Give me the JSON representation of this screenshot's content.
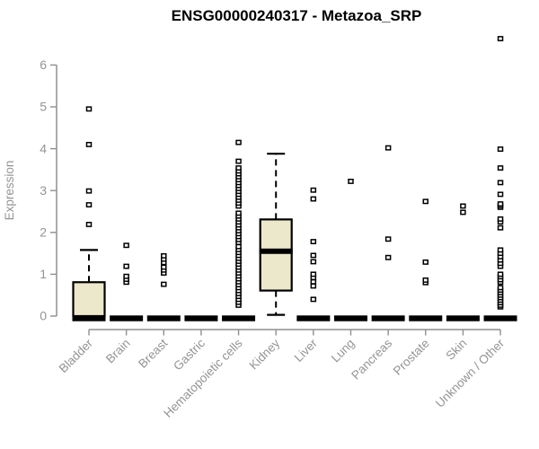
{
  "chart_data": {
    "type": "boxplot",
    "title": "ENSG00000240317 - Metazoa_SRP",
    "ylabel": "Expression",
    "xlabel": "",
    "ylim": [
      0,
      6.7
    ],
    "yticks": [
      0,
      1,
      2,
      3,
      4,
      5,
      6
    ],
    "grid": false,
    "legend": "none",
    "colors": {
      "box_fill": "#ece8cb",
      "box_stroke": "#000000",
      "median": "#000000",
      "axis": "#8f8f8f",
      "tick_text": "#949494",
      "title_text": "#000000",
      "outlier_fill": "#ffffff",
      "background": "#ffffff"
    },
    "categories": [
      "Bladder",
      "Brain",
      "Breast",
      "Gastric",
      "Hematopoietic cells",
      "Kidney",
      "Liver",
      "Lung",
      "Pancreas",
      "Prostate",
      "Skin",
      "Unknown / Other"
    ],
    "boxes": [
      {
        "category": "Bladder",
        "whisker_low": 0,
        "q1": 0,
        "median": 0,
        "q3": 0.81,
        "whisker_high": 1.58,
        "outliers": [
          2.19,
          2.66,
          2.99,
          4.1,
          4.95
        ]
      },
      {
        "category": "Brain",
        "whisker_low": 0,
        "q1": 0,
        "median": 0,
        "q3": 0,
        "whisker_high": 0,
        "outliers": [
          0.81,
          0.88,
          0.95,
          1.19,
          1.69
        ]
      },
      {
        "category": "Breast",
        "whisker_low": 0,
        "q1": 0,
        "median": 0,
        "q3": 0,
        "whisker_high": 0,
        "outliers": [
          0.76,
          1.03,
          1.1,
          1.17,
          1.28,
          1.36,
          1.44
        ]
      },
      {
        "category": "Gastric",
        "whisker_low": 0,
        "q1": 0,
        "median": 0,
        "q3": 0,
        "whisker_high": 0,
        "outliers": []
      },
      {
        "category": "Hematopoietic cells",
        "whisker_low": 0,
        "q1": 0,
        "median": 0,
        "q3": 0,
        "whisker_high": 0,
        "outliers": [
          0.26,
          0.33,
          0.4,
          0.47,
          0.54,
          0.61,
          0.68,
          0.75,
          0.82,
          0.89,
          0.96,
          1.03,
          1.1,
          1.17,
          1.24,
          1.31,
          1.38,
          1.45,
          1.52,
          1.59,
          1.66,
          1.76,
          1.83,
          1.9,
          1.97,
          2.04,
          2.11,
          2.18,
          2.25,
          2.32,
          2.39,
          2.46,
          2.63,
          2.7,
          2.77,
          2.84,
          2.91,
          2.98,
          3.05,
          3.12,
          3.19,
          3.26,
          3.33,
          3.4,
          3.47,
          3.54,
          3.7,
          4.15
        ]
      },
      {
        "category": "Kidney",
        "whisker_low": 0.03,
        "q1": 0.61,
        "median": 1.55,
        "q3": 2.31,
        "whisker_high": 3.88,
        "outliers": []
      },
      {
        "category": "Liver",
        "whisker_low": 0,
        "q1": 0,
        "median": 0,
        "q3": 0,
        "whisker_high": 0,
        "outliers": [
          0.4,
          0.72,
          0.82,
          0.92,
          1.0,
          1.3,
          1.45,
          1.78,
          2.8,
          3.01
        ]
      },
      {
        "category": "Lung",
        "whisker_low": 0,
        "q1": 0,
        "median": 0,
        "q3": 0,
        "whisker_high": 0,
        "outliers": [
          3.22
        ]
      },
      {
        "category": "Pancreas",
        "whisker_low": 0,
        "q1": 0,
        "median": 0,
        "q3": 0,
        "whisker_high": 0,
        "outliers": [
          1.4,
          1.84,
          4.02
        ]
      },
      {
        "category": "Prostate",
        "whisker_low": 0,
        "q1": 0,
        "median": 0,
        "q3": 0,
        "whisker_high": 0,
        "outliers": [
          0.8,
          0.86,
          1.29,
          2.74
        ]
      },
      {
        "category": "Skin",
        "whisker_low": 0,
        "q1": 0,
        "median": 0,
        "q3": 0,
        "whisker_high": 0,
        "outliers": [
          2.48,
          2.63
        ]
      },
      {
        "category": "Unknown / Other",
        "whisker_low": 0,
        "q1": 0,
        "median": 0,
        "q3": 0,
        "whisker_high": 0,
        "outliers": [
          0.22,
          0.26,
          0.32,
          0.38,
          0.44,
          0.5,
          0.56,
          0.62,
          0.68,
          0.81,
          0.87,
          0.94,
          1.0,
          1.19,
          1.26,
          1.34,
          1.42,
          1.5,
          1.58,
          2.11,
          2.25,
          2.32,
          2.6,
          2.64,
          2.68,
          2.91,
          3.19,
          3.54,
          3.99,
          6.63
        ]
      }
    ]
  }
}
